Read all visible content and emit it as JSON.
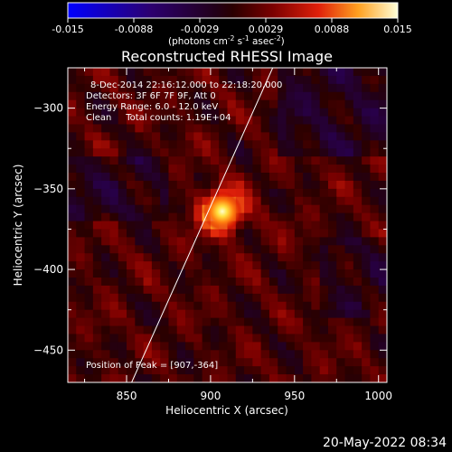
{
  "colorbar": {
    "ticks": [
      "-0.015",
      "-0.0088",
      "-0.0029",
      "0.0029",
      "0.0088",
      "0.015"
    ],
    "label_main": "(photons cm",
    "label_exp1": "-2",
    "label_mid": " s",
    "label_exp2": "-1",
    "label_tail": " asec",
    "label_exp3": "-2",
    "label_close": ")"
  },
  "chart_data": {
    "type": "heatmap",
    "title": "Reconstructed RHESSI Image",
    "xlabel": "Heliocentric X (arcsec)",
    "ylabel": "Heliocentric Y (arcsec)",
    "xlim": [
      815,
      1005
    ],
    "ylim": [
      -470,
      -275
    ],
    "x_ticks": [
      850,
      900,
      950,
      1000
    ],
    "y_ticks": [
      -300,
      -350,
      -400,
      -450
    ],
    "x_tick_labels": [
      "850",
      "900",
      "950",
      "1000"
    ],
    "y_tick_labels": [
      "−300",
      "−350",
      "−400",
      "−450"
    ],
    "color_range": [
      -0.015,
      0.015
    ],
    "colormap": "rhessi",
    "peak": {
      "x": 907,
      "y": -364,
      "value": 0.015
    },
    "limb_line": [
      [
        853,
        -470
      ],
      [
        937,
        -275
      ]
    ],
    "info_lines": [
      "8-Dec-2014 22:16:12.000 to 22:18:20.000",
      "Detectors: 3F 6F 7F 9F, Att 0",
      "Energy Range: 6.0 - 12.0 keV",
      "Clean     Total counts: 1.19E+04"
    ],
    "peak_label": "Position of Peak = [907,-364]"
  },
  "footer": {
    "date": "20-May-2022 08:34"
  }
}
